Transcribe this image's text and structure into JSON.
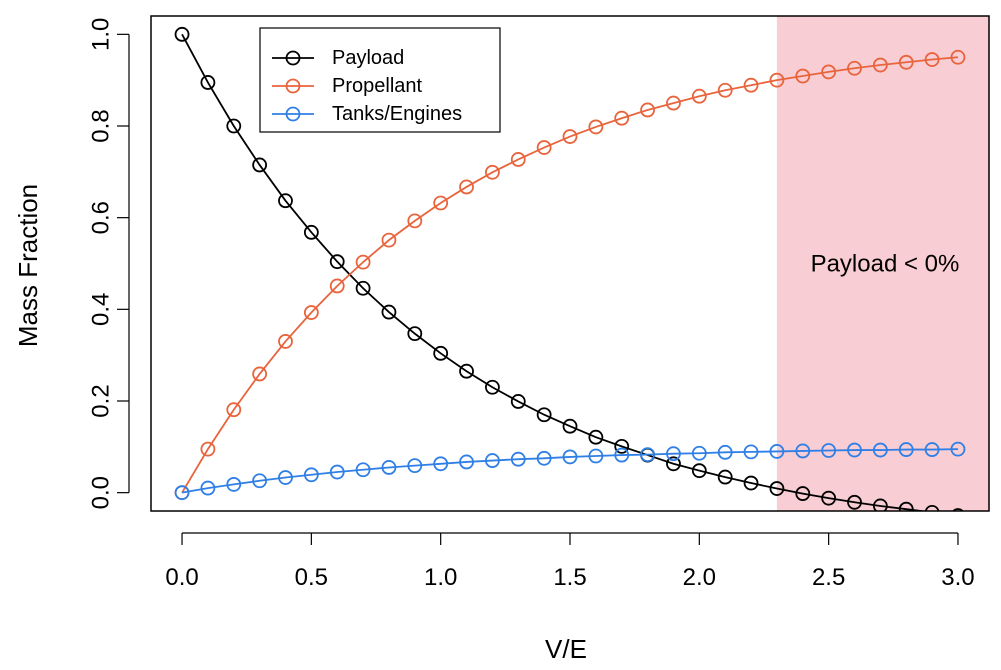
{
  "chart_data": {
    "type": "line",
    "xlabel": "V/E",
    "ylabel": "Mass Fraction",
    "xlim": [
      -0.12,
      3.12
    ],
    "ylim": [
      -0.04,
      1.04
    ],
    "xticks": [
      "0.0",
      "0.5",
      "1.0",
      "1.5",
      "2.0",
      "2.5",
      "3.0"
    ],
    "yticks": [
      "0.0",
      "0.2",
      "0.4",
      "0.6",
      "0.8",
      "1.0"
    ],
    "grid": false,
    "legend": {
      "placement": "top-left"
    },
    "x": [
      0.0,
      0.1,
      0.2,
      0.3,
      0.4,
      0.5,
      0.6,
      0.7,
      0.8,
      0.9,
      1.0,
      1.1,
      1.2,
      1.3,
      1.4,
      1.5,
      1.6,
      1.7,
      1.8,
      1.9,
      2.0,
      2.1,
      2.2,
      2.3,
      2.4,
      2.5,
      2.6,
      2.7,
      2.8,
      2.9,
      3.0
    ],
    "series": [
      {
        "name": "Payload",
        "color": "#000000",
        "values": [
          1.0,
          0.895,
          0.8,
          0.715,
          0.637,
          0.568,
          0.504,
          0.446,
          0.394,
          0.347,
          0.304,
          0.265,
          0.23,
          0.199,
          0.17,
          0.145,
          0.121,
          0.101,
          0.082,
          0.063,
          0.048,
          0.034,
          0.021,
          0.009,
          -0.002,
          -0.012,
          -0.021,
          -0.029,
          -0.036,
          -0.043,
          -0.05
        ]
      },
      {
        "name": "Propellant",
        "color": "#e8643c",
        "values": [
          0.0,
          0.095,
          0.181,
          0.259,
          0.33,
          0.393,
          0.451,
          0.503,
          0.551,
          0.593,
          0.632,
          0.667,
          0.699,
          0.727,
          0.753,
          0.777,
          0.798,
          0.817,
          0.835,
          0.85,
          0.865,
          0.878,
          0.889,
          0.9,
          0.909,
          0.918,
          0.926,
          0.933,
          0.939,
          0.945,
          0.95
        ]
      },
      {
        "name": "Tanks/Engines",
        "color": "#2f7fe6",
        "values": [
          0.0,
          0.01,
          0.018,
          0.026,
          0.033,
          0.039,
          0.045,
          0.05,
          0.055,
          0.059,
          0.063,
          0.067,
          0.07,
          0.073,
          0.075,
          0.078,
          0.08,
          0.082,
          0.083,
          0.085,
          0.086,
          0.088,
          0.089,
          0.09,
          0.091,
          0.092,
          0.093,
          0.093,
          0.094,
          0.094,
          0.095
        ]
      }
    ],
    "shaded_region": {
      "x_from": 2.3,
      "x_to": 3.12,
      "color": "#f8cdd3",
      "label": "Payload < 0%"
    }
  }
}
